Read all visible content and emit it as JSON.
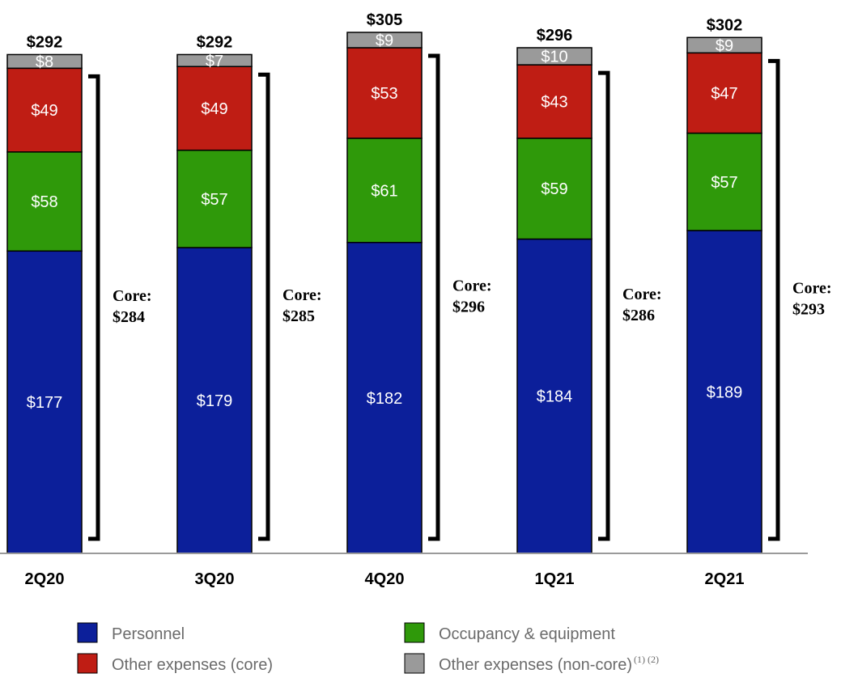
{
  "chart_data": {
    "type": "bar",
    "stacked": true,
    "categories": [
      "2Q20",
      "3Q20",
      "4Q20",
      "1Q21",
      "2Q21"
    ],
    "series": [
      {
        "name": "Personnel",
        "color": "#0c1f9a",
        "values": [
          177,
          179,
          182,
          184,
          189
        ],
        "labels": [
          "$177",
          "$179",
          "$182",
          "$184",
          "$189"
        ]
      },
      {
        "name": "Occupancy & equipment",
        "color": "#2f990a",
        "values": [
          58,
          57,
          61,
          59,
          57
        ],
        "labels": [
          "$58",
          "$57",
          "$61",
          "$59",
          "$57"
        ]
      },
      {
        "name": "Other expenses (core)",
        "color": "#bf1d14",
        "values": [
          49,
          49,
          53,
          43,
          47
        ],
        "labels": [
          "$49",
          "$49",
          "$53",
          "$43",
          "$47"
        ]
      },
      {
        "name": "Other expenses (non-core)",
        "name_superscript": "(1) (2)",
        "color": "#9a9a9a",
        "values": [
          8,
          7,
          9,
          10,
          9
        ],
        "labels": [
          "$8",
          "$7",
          "$9",
          "$10",
          "$9"
        ]
      }
    ],
    "totals": [
      292,
      292,
      305,
      296,
      302
    ],
    "total_labels": [
      "$292",
      "$292",
      "$305",
      "$296",
      "$302"
    ],
    "core": {
      "label": "Core:",
      "values": [
        284,
        285,
        296,
        286,
        293
      ],
      "value_labels": [
        "$284",
        "$285",
        "$296",
        "$286",
        "$293"
      ]
    },
    "ylim": [
      0,
      305
    ],
    "grid": false,
    "legend_position": "bottom"
  }
}
